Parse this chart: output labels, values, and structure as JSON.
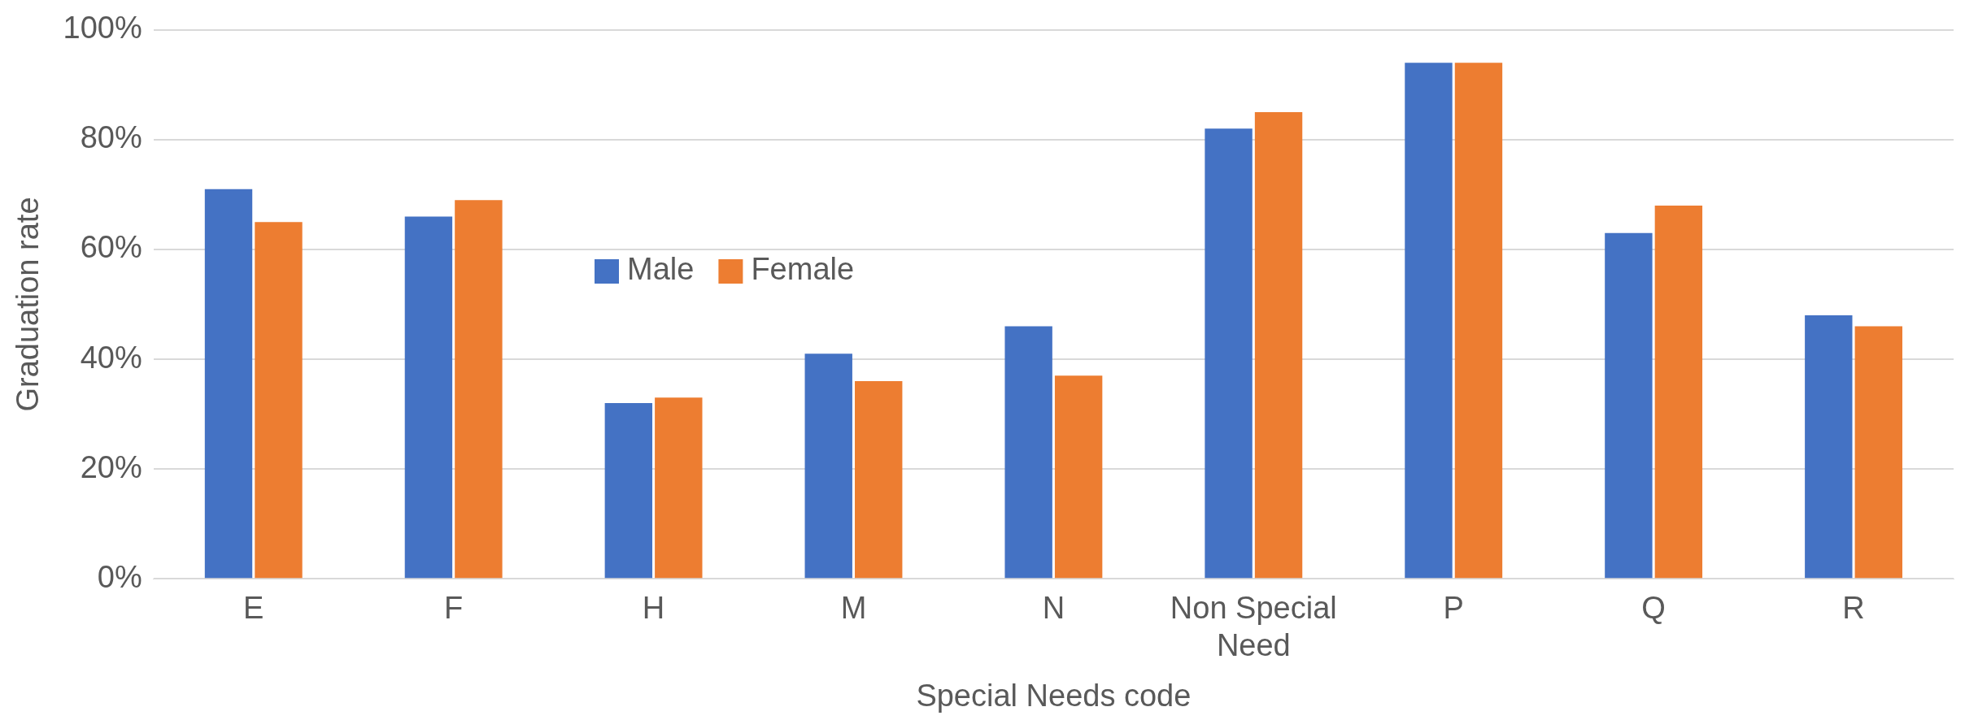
{
  "chart_data": {
    "type": "bar",
    "xlabel": "Special Needs code",
    "ylabel": "Graduation rate",
    "categories": [
      "E",
      "F",
      "H",
      "M",
      "N",
      "Non Special Need",
      "P",
      "Q",
      "R"
    ],
    "series": [
      {
        "name": "Male",
        "color": "#4472c4",
        "values": [
          71,
          66,
          32,
          41,
          46,
          82,
          94,
          63,
          48
        ]
      },
      {
        "name": "Female",
        "color": "#ed7d31",
        "values": [
          65,
          69,
          33,
          36,
          37,
          85,
          94,
          68,
          46
        ]
      }
    ],
    "ylim": [
      0,
      100
    ],
    "yticks": [
      {
        "value": 0,
        "label": "0%"
      },
      {
        "value": 20,
        "label": "20%"
      },
      {
        "value": 40,
        "label": "40%"
      },
      {
        "value": 60,
        "label": "60%"
      },
      {
        "value": 80,
        "label": "80%"
      },
      {
        "value": 100,
        "label": "100%"
      }
    ],
    "grid": "y",
    "legend": "top left"
  }
}
